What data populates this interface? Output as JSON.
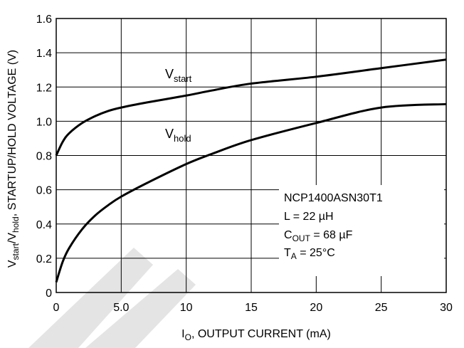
{
  "chart_data": {
    "type": "line",
    "xlabel": {
      "pre": "I",
      "sub": "O",
      "post": ", OUTPUT CURRENT (mA)"
    },
    "ylabel": {
      "p1": "V",
      "s1": "start",
      "p2": "/V",
      "s2": "hold",
      "p3": ", STARTUP/HOLD VOLTAGE (V)"
    },
    "xlim": [
      0,
      30
    ],
    "ylim": [
      0,
      1.6
    ],
    "x_ticks": [
      0,
      5,
      10,
      15,
      20,
      25,
      30
    ],
    "x_tick_labels": [
      "0",
      "5.0",
      "10",
      "15",
      "20",
      "25",
      "30"
    ],
    "y_ticks": [
      0,
      0.2,
      0.4,
      0.6,
      0.8,
      1.0,
      1.2,
      1.4,
      1.6
    ],
    "y_tick_labels": [
      "0",
      "0.2",
      "0.4",
      "0.6",
      "0.8",
      "1.0",
      "1.2",
      "1.4",
      "1.6"
    ],
    "grid": true,
    "series": [
      {
        "label_main": "V",
        "label_sub": "start",
        "x": [
          0,
          0.5,
          1,
          2,
          3,
          4,
          5,
          7,
          10,
          12,
          15,
          20,
          25,
          30
        ],
        "y": [
          0.8,
          0.88,
          0.93,
          0.99,
          1.03,
          1.06,
          1.08,
          1.11,
          1.15,
          1.18,
          1.22,
          1.26,
          1.31,
          1.36
        ]
      },
      {
        "label_main": "V",
        "label_sub": "hold",
        "x": [
          0,
          0.5,
          1,
          2,
          3,
          4,
          5,
          7,
          10,
          12,
          15,
          20,
          25,
          30
        ],
        "y": [
          0.06,
          0.18,
          0.26,
          0.37,
          0.45,
          0.51,
          0.56,
          0.64,
          0.75,
          0.81,
          0.89,
          0.99,
          1.08,
          1.1
        ]
      }
    ],
    "annotation": {
      "line1": "NCP1400ASN30T1",
      "line2": "L = 22 µH",
      "line3_main": "C",
      "line3_sub": "OUT",
      "line3_post": " = 68 µF",
      "line4_main": "T",
      "line4_sub": "A",
      "line4_post": " = 25°C"
    }
  }
}
